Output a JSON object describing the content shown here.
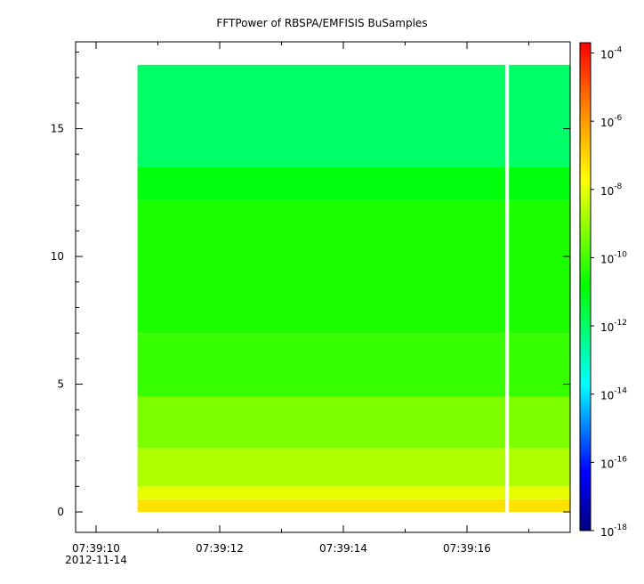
{
  "chart_data": {
    "type": "heatmap",
    "title": "FFTPower of RBSPA/EMFISIS  BuSamples",
    "xlabel": "",
    "ylabel": "",
    "x_ticks": [
      {
        "label": "07:39:10",
        "sublabel": "2012-11-14",
        "t": 0
      },
      {
        "label": "07:39:12",
        "t": 2
      },
      {
        "label": "07:39:14",
        "t": 4
      },
      {
        "label": "07:39:16",
        "t": 6
      }
    ],
    "x_minor_ticks": [
      1,
      3,
      5,
      7
    ],
    "x_range_seconds_after_07_39_09_6": [
      0,
      7.8
    ],
    "y_ticks": [
      0,
      5,
      10,
      15
    ],
    "ylim": [
      -0.8,
      18.4
    ],
    "data_time_extent": [
      "07:39:10.67",
      "07:39:17.75"
    ],
    "data_y_extent": [
      0,
      17.5
    ],
    "gap_time": "07:39:16.65",
    "bands": [
      {
        "y_from": 0.0,
        "y_to": 0.5,
        "log10_power": -7.2
      },
      {
        "y_from": 0.5,
        "y_to": 1.0,
        "log10_power": -8.0
      },
      {
        "y_from": 1.0,
        "y_to": 2.5,
        "log10_power": -8.7
      },
      {
        "y_from": 2.5,
        "y_to": 4.5,
        "log10_power": -9.3
      },
      {
        "y_from": 4.5,
        "y_to": 7.0,
        "log10_power": -10.2
      },
      {
        "y_from": 7.0,
        "y_to": 12.2,
        "log10_power": -10.5
      },
      {
        "y_from": 12.2,
        "y_to": 13.5,
        "log10_power": -11.0
      },
      {
        "y_from": 13.5,
        "y_to": 17.5,
        "log10_power": -12.0
      }
    ],
    "colorbar": {
      "scale": "log",
      "range_exponents": [
        -18,
        -3.7
      ],
      "ticks": [
        {
          "base": "10",
          "exp": "-4"
        },
        {
          "base": "10",
          "exp": "-6"
        },
        {
          "base": "10",
          "exp": "-8"
        },
        {
          "base": "10",
          "exp": "-10"
        },
        {
          "base": "10",
          "exp": "-12"
        },
        {
          "base": "10",
          "exp": "-14"
        },
        {
          "base": "10",
          "exp": "-16"
        },
        {
          "base": "10",
          "exp": "-18"
        }
      ]
    }
  }
}
